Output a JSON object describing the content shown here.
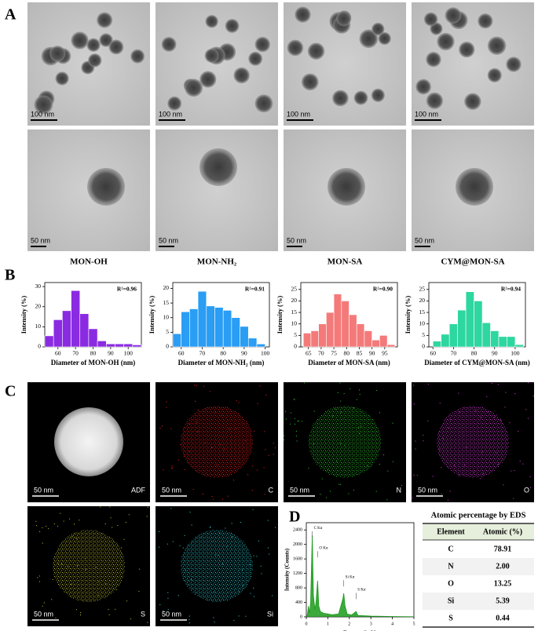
{
  "panel_labels": [
    "A",
    "B",
    "C",
    "D"
  ],
  "tem": {
    "samples": [
      "MON-OH",
      "MON-NH₂",
      "MON-SA",
      "CYM@MON-SA"
    ],
    "low_mag_scale_bars": [
      "100 nm",
      "100 nm",
      "100 nm",
      "100 nm"
    ],
    "high_mag_scale_bars": [
      "50 nm",
      "50 nm",
      "50 nm",
      "50 nm"
    ]
  },
  "eds_maps": [
    {
      "label": "ADF",
      "scale_bar": "50 nm",
      "color": "#e8e8e8"
    },
    {
      "label": "C",
      "scale_bar": "50 nm",
      "color": "#ff2020"
    },
    {
      "label": "N",
      "scale_bar": "50 nm",
      "color": "#30d030"
    },
    {
      "label": "O",
      "scale_bar": "50 nm",
      "color": "#e040e0"
    },
    {
      "label": "S",
      "scale_bar": "50 nm",
      "color": "#c8c830"
    },
    {
      "label": "Si",
      "scale_bar": "50 nm",
      "color": "#30d8e0"
    }
  ],
  "chart_data": [
    {
      "type": "histogram",
      "color": "#8a2be2",
      "xlabel": "Diameter of MON-OH (nm)",
      "ylabel": "Intensity (%)",
      "annotation": "R²=0.96",
      "bins": [
        52.5,
        57.5,
        62.5,
        67.5,
        72.5,
        77.5,
        82.5,
        87.5,
        92.5,
        97.5,
        102.5,
        107.5
      ],
      "values": [
        5.5,
        13.5,
        18,
        28,
        16.5,
        9,
        3,
        1.5,
        1.5,
        1.5,
        1
      ],
      "xlim": [
        52.5,
        107.5
      ],
      "ylim": [
        0,
        32
      ],
      "xticks": [
        60,
        70,
        80,
        90,
        100
      ],
      "yticks": [
        0,
        10,
        20,
        30
      ]
    },
    {
      "type": "histogram",
      "color": "#2a9df4",
      "xlabel": "Diameter of MON-NH₂ (nm)",
      "ylabel": "Intensity (%)",
      "annotation": "R²=0.91",
      "bins": [
        56,
        60,
        64,
        68,
        72,
        76,
        80,
        84,
        88,
        92,
        96,
        100
      ],
      "values": [
        4.5,
        12,
        13,
        19,
        14,
        13.5,
        12.5,
        10,
        7,
        3,
        1
      ],
      "xlim": [
        56,
        102
      ],
      "ylim": [
        0,
        22
      ],
      "xticks": [
        60,
        70,
        80,
        90,
        100
      ],
      "yticks": [
        0,
        5,
        10,
        15,
        20
      ]
    },
    {
      "type": "histogram",
      "color": "#f47a7a",
      "xlabel": "Diameter of MON-SA (nm)",
      "ylabel": "Intensity (%)",
      "annotation": "R²=0.90",
      "bins": [
        63,
        66,
        69,
        72,
        75,
        78,
        81,
        84,
        87,
        90,
        93,
        96,
        99
      ],
      "values": [
        6,
        7,
        10,
        15,
        23,
        20,
        14,
        10,
        7,
        3,
        5,
        1
      ],
      "xlim": [
        62,
        100
      ],
      "ylim": [
        0,
        28
      ],
      "xticks": [
        65,
        70,
        75,
        80,
        85,
        90,
        95
      ],
      "yticks": [
        0,
        5,
        10,
        15,
        20,
        25
      ]
    },
    {
      "type": "histogram",
      "color": "#2ed6a0",
      "xlabel": "Diameter of CYM@MON-SA (nm)",
      "ylabel": "Intensity (%)",
      "annotation": "R²=0.94",
      "bins": [
        60,
        64,
        68,
        72,
        76,
        80,
        84,
        88,
        92,
        96,
        100,
        104
      ],
      "values": [
        2.5,
        5.5,
        10,
        16,
        24,
        20,
        10.5,
        7,
        4.5,
        4.5,
        1
      ],
      "xlim": [
        58,
        105
      ],
      "ylim": [
        0,
        28
      ],
      "xticks": [
        60,
        70,
        80,
        90,
        100
      ],
      "yticks": [
        0,
        5,
        10,
        15,
        20,
        25
      ]
    },
    {
      "type": "area",
      "color": "#1a9a1a",
      "xlabel": "Energy (keV)",
      "ylabel": "Intensity (Counts)",
      "x": [
        0,
        0.05,
        0.1,
        0.15,
        0.2,
        0.277,
        0.33,
        0.4,
        0.45,
        0.525,
        0.58,
        0.65,
        0.8,
        1.0,
        1.2,
        1.5,
        1.7,
        1.74,
        1.8,
        1.9,
        2.1,
        2.31,
        2.4,
        3,
        4,
        5
      ],
      "values": [
        0,
        50,
        300,
        100,
        400,
        2250,
        600,
        200,
        400,
        1000,
        300,
        150,
        100,
        80,
        60,
        80,
        500,
        650,
        300,
        80,
        50,
        150,
        40,
        20,
        10,
        5
      ],
      "peak_labels": [
        {
          "label": "C Kα",
          "x": 0.277
        },
        {
          "label": "O Kα",
          "x": 0.525
        },
        {
          "label": "Si Kα",
          "x": 1.74
        },
        {
          "label": "S Kα",
          "x": 2.31
        }
      ],
      "xlim": [
        0,
        5
      ],
      "ylim": [
        0,
        2600
      ],
      "xticks": [
        0,
        1,
        2,
        3,
        4,
        5
      ],
      "yticks": [
        0,
        400,
        800,
        1200,
        1600,
        2000,
        2400
      ]
    }
  ],
  "table": {
    "title": "Atomic percentage by EDS",
    "header": [
      "Element",
      "Atomic (%)"
    ],
    "rows": [
      [
        "C",
        "78.91"
      ],
      [
        "N",
        "2.00"
      ],
      [
        "O",
        "13.25"
      ],
      [
        "Si",
        "5.39"
      ],
      [
        "S",
        "0.44"
      ]
    ]
  }
}
